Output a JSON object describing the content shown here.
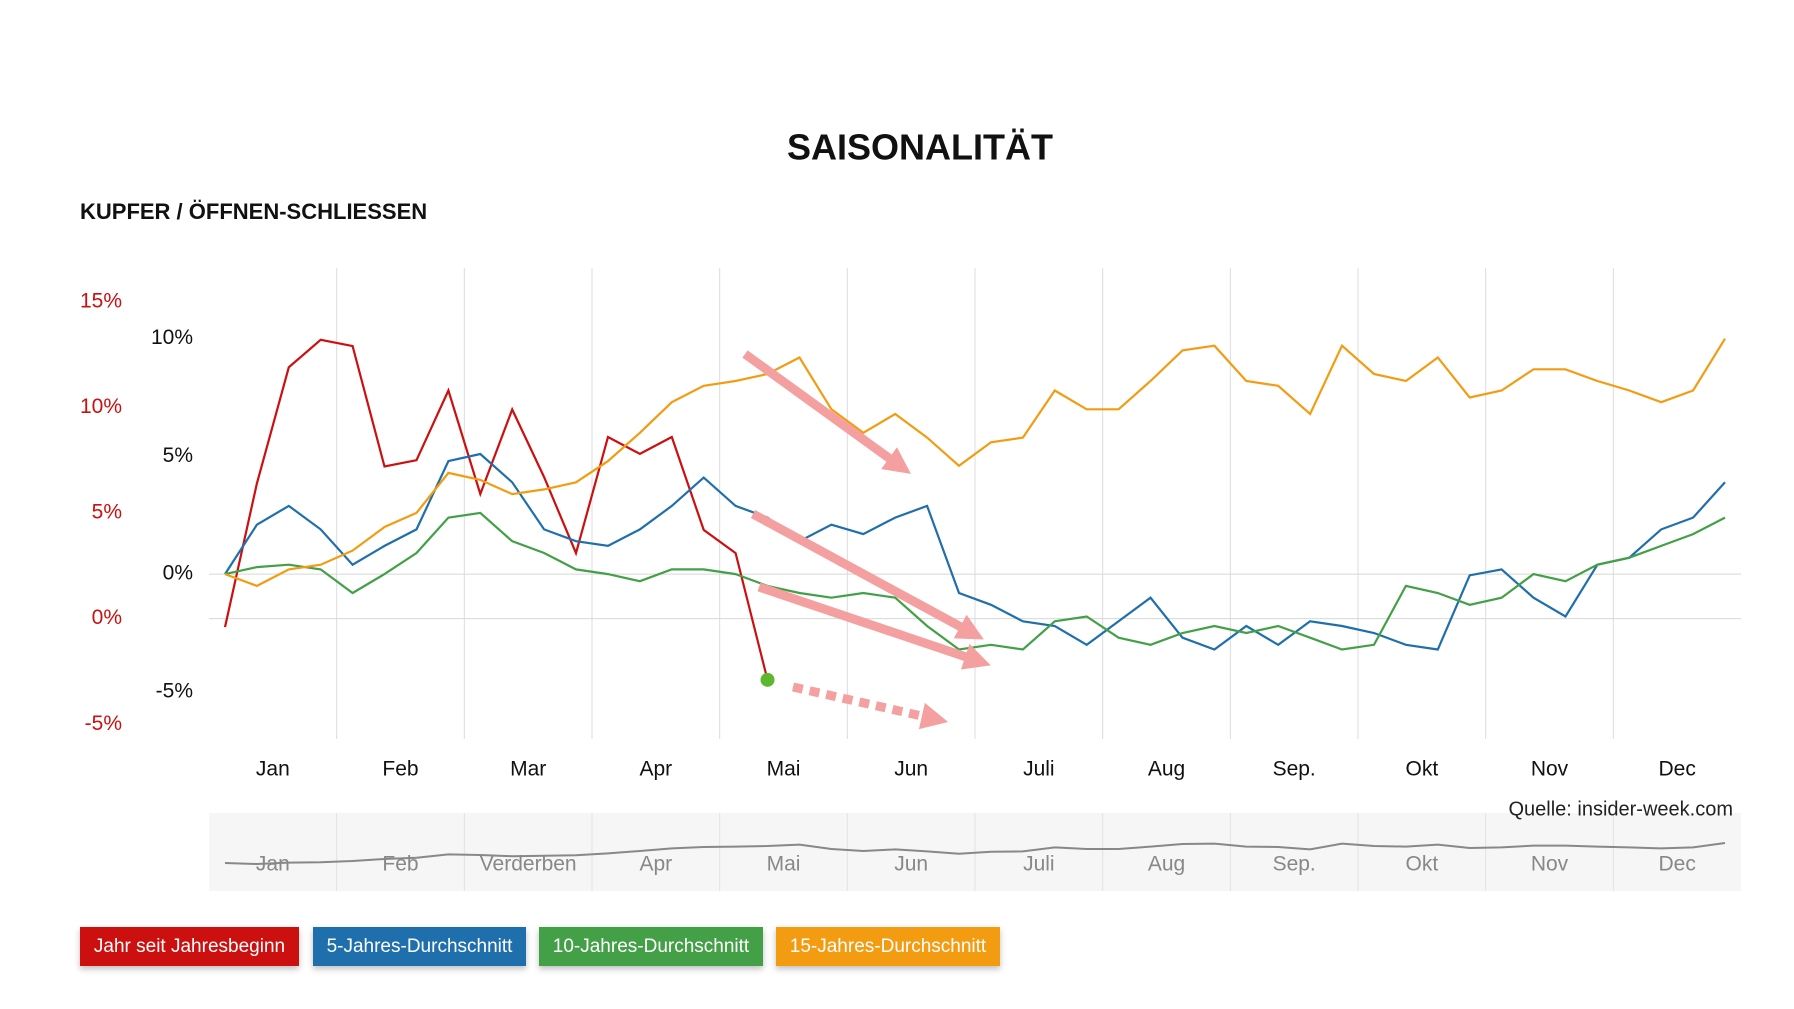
{
  "chart_data": {
    "type": "line",
    "title": "SAISONALITÄT",
    "subtitle": "KUPFER / ÖFFNEN-SCHLIESSEN",
    "source": "Quelle: insider-week.com",
    "categories": [
      null,
      "Jan",
      null,
      null,
      null,
      "Feb",
      null,
      null,
      null,
      "Mar",
      null,
      null,
      null,
      "Apr",
      null,
      null,
      null,
      "Mai",
      null,
      null,
      null,
      "Jun",
      null,
      null,
      null,
      "Juli",
      null,
      null,
      null,
      "Aug",
      null,
      null,
      null,
      "Sep.",
      null,
      null,
      null,
      "Okt",
      null,
      null,
      null,
      "Nov",
      null,
      null,
      null,
      "Dec",
      null,
      null
    ],
    "ylim": [
      -5.7,
      16.6
    ],
    "yticks": [
      {
        "value": -5,
        "label": "-5%"
      },
      {
        "value": 0,
        "label": "0%"
      },
      {
        "value": 5,
        "label": "5%"
      },
      {
        "value": 10,
        "label": "10%"
      },
      {
        "value": 15,
        "label": "15%"
      }
    ],
    "y2lim": [
      -7,
      13
    ],
    "y2ticks": [
      {
        "value": -5,
        "label": "-5%"
      },
      {
        "value": 0,
        "label": "0%"
      },
      {
        "value": 5,
        "label": "5%"
      },
      {
        "value": 10,
        "label": "10%"
      }
    ],
    "series": [
      {
        "name": "Jahr seit Jahresbeginn",
        "color": "#cc1010",
        "values": [
          -0.4,
          6.4,
          11.9,
          13.2,
          12.9,
          7.2,
          7.5,
          10.8,
          5.9,
          9.9,
          6.7,
          3.1,
          8.6,
          7.8,
          8.6,
          4.2,
          3.1,
          -2.9,
          null,
          null,
          null,
          null,
          null,
          null,
          null,
          null,
          null,
          null,
          null,
          null,
          null,
          null,
          null,
          null,
          null,
          null,
          null,
          null,
          null,
          null,
          null,
          null,
          null,
          null,
          null,
          null,
          null,
          null
        ]
      },
      {
        "name": "5-Jahres-Durchschnitt",
        "color": "#1f6fad",
        "axis": "y2",
        "values": [
          0,
          2.1,
          2.9,
          1.9,
          0.4,
          1.2,
          1.9,
          4.8,
          5.1,
          3.9,
          1.9,
          1.4,
          1.2,
          1.9,
          2.9,
          4.1,
          2.9,
          2.4,
          1.4,
          2.1,
          1.7,
          2.4,
          2.9,
          -0.8,
          -1.3,
          -2,
          -2.2,
          -3,
          -2,
          -1,
          -2.7,
          -3.2,
          -2.2,
          -3,
          -2,
          -2.2,
          -2.5,
          -3,
          -3.2,
          -0.05,
          0.2,
          -1,
          -1.8,
          0.4,
          0.7,
          1.9,
          2.4,
          3.9
        ]
      },
      {
        "name": "10-Jahres-Durchschnitt",
        "color": "#43a047",
        "axis": "y2",
        "values": [
          0,
          0.3,
          0.4,
          0.2,
          -0.8,
          0,
          0.9,
          2.4,
          2.6,
          1.4,
          0.9,
          0.2,
          0,
          -0.3,
          0.2,
          0.2,
          0,
          -0.5,
          -0.8,
          -1,
          -0.8,
          -1,
          -2.2,
          -3.2,
          -3,
          -3.2,
          -2,
          -1.8,
          -2.7,
          -3,
          -2.5,
          -2.2,
          -2.5,
          -2.2,
          -2.7,
          -3.2,
          -3,
          -0.5,
          -0.8,
          -1.3,
          -1,
          0,
          -0.3,
          0.4,
          0.7,
          1.2,
          1.7,
          2.4
        ]
      },
      {
        "name": "15-Jahres-Durchschnitt",
        "color": "#f39c12",
        "axis": "y2",
        "values": [
          0,
          -0.5,
          0.2,
          0.4,
          1,
          2,
          2.6,
          4.3,
          4,
          3.4,
          3.6,
          3.9,
          4.8,
          6,
          7.3,
          8,
          8.2,
          8.5,
          9.2,
          7,
          6,
          6.8,
          5.8,
          4.6,
          5.6,
          5.8,
          7.8,
          7,
          7,
          8.2,
          9.5,
          9.7,
          8.2,
          8,
          6.8,
          9.7,
          8.5,
          8.2,
          9.2,
          7.5,
          7.8,
          8.7,
          8.7,
          8.2,
          7.8,
          7.3,
          7.8,
          10
        ]
      }
    ],
    "navigator_labels": [
      "Jan",
      "Feb",
      "Verderben",
      "Apr",
      "Mai",
      "Jun",
      "Juli",
      "Aug",
      "Sep.",
      "Okt",
      "Nov",
      "Dec"
    ]
  }
}
